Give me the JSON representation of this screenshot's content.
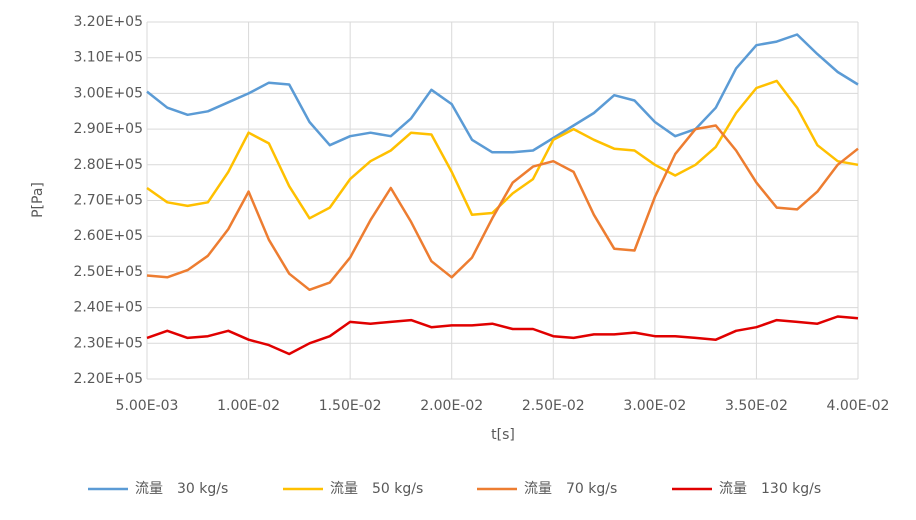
{
  "chart_data": {
    "type": "line",
    "xlabel": "t[s]",
    "ylabel": "P[Pa]",
    "x": [
      0.005,
      0.006,
      0.007,
      0.008,
      0.009,
      0.01,
      0.011,
      0.012,
      0.013,
      0.014,
      0.015,
      0.016,
      0.017,
      0.018,
      0.019,
      0.02,
      0.021,
      0.022,
      0.023,
      0.024,
      0.025,
      0.026,
      0.027,
      0.028,
      0.029,
      0.03,
      0.031,
      0.032,
      0.033,
      0.034,
      0.035,
      0.036,
      0.037,
      0.038,
      0.039,
      0.04
    ],
    "series": [
      {
        "name": "流量　30 kg/s",
        "color": "#5b9bd5",
        "values": [
          300500,
          296000,
          294000,
          295000,
          297500,
          300000,
          303000,
          302500,
          292000,
          285500,
          288000,
          289000,
          288000,
          293000,
          301000,
          297000,
          287000,
          283500,
          283500,
          284000,
          287500,
          291000,
          294500,
          299500,
          298000,
          292000,
          288000,
          290000,
          296000,
          307000,
          313500,
          314500,
          316500,
          311000,
          306000,
          302500
        ]
      },
      {
        "name": "流量　50 kg/s",
        "color": "#ffc000",
        "values": [
          273500,
          269500,
          268500,
          269500,
          278000,
          289000,
          286000,
          274000,
          265000,
          268000,
          276000,
          281000,
          284000,
          289000,
          288500,
          278000,
          266000,
          266500,
          272000,
          276000,
          287000,
          290000,
          287000,
          284500,
          284000,
          280000,
          277000,
          280000,
          285000,
          294500,
          301500,
          303500,
          296000,
          285500,
          281000,
          280000
        ]
      },
      {
        "name": "流量　70 kg/s",
        "color": "#ed7d31",
        "values": [
          249000,
          248500,
          250500,
          254500,
          262000,
          272500,
          259000,
          249500,
          245000,
          247000,
          254000,
          264500,
          273500,
          264000,
          253000,
          248500,
          254000,
          265000,
          275000,
          279500,
          281000,
          278000,
          266000,
          256500,
          256000,
          271000,
          283000,
          290000,
          291000,
          284000,
          275000,
          268000,
          267500,
          272500,
          280000,
          284500
        ]
      },
      {
        "name": "流量　130 kg/s",
        "color": "#e00000",
        "values": [
          231500,
          233500,
          231500,
          232000,
          233500,
          231000,
          229500,
          227000,
          230000,
          232000,
          236000,
          235500,
          236000,
          236500,
          234500,
          235000,
          235000,
          235500,
          234000,
          234000,
          232000,
          231500,
          232500,
          232500,
          233000,
          232000,
          232000,
          231500,
          231000,
          233500,
          234500,
          236500,
          236000,
          235500,
          237500,
          237000
        ]
      }
    ],
    "xlim": [
      0.005,
      0.04
    ],
    "xticks": [
      {
        "value": 0.005,
        "label": "5.00E-03"
      },
      {
        "value": 0.01,
        "label": "1.00E-02"
      },
      {
        "value": 0.015,
        "label": "1.50E-02"
      },
      {
        "value": 0.02,
        "label": "2.00E-02"
      },
      {
        "value": 0.025,
        "label": "2.50E-02"
      },
      {
        "value": 0.03,
        "label": "3.00E-02"
      },
      {
        "value": 0.035,
        "label": "3.50E-02"
      },
      {
        "value": 0.04,
        "label": "4.00E-02"
      }
    ],
    "ylim": [
      220000,
      320000
    ],
    "yticks": [
      {
        "value": 220000,
        "label": "2.20E+05"
      },
      {
        "value": 230000,
        "label": "2.30E+05"
      },
      {
        "value": 240000,
        "label": "2.40E+05"
      },
      {
        "value": 250000,
        "label": "2.50E+05"
      },
      {
        "value": 260000,
        "label": "2.60E+05"
      },
      {
        "value": 270000,
        "label": "2.70E+05"
      },
      {
        "value": 280000,
        "label": "2.80E+05"
      },
      {
        "value": 290000,
        "label": "2.90E+05"
      },
      {
        "value": 300000,
        "label": "3.00E+05"
      },
      {
        "value": 310000,
        "label": "3.10E+05"
      },
      {
        "value": 320000,
        "label": "3.20E+05"
      }
    ],
    "grid": true,
    "legend": "bottom"
  }
}
